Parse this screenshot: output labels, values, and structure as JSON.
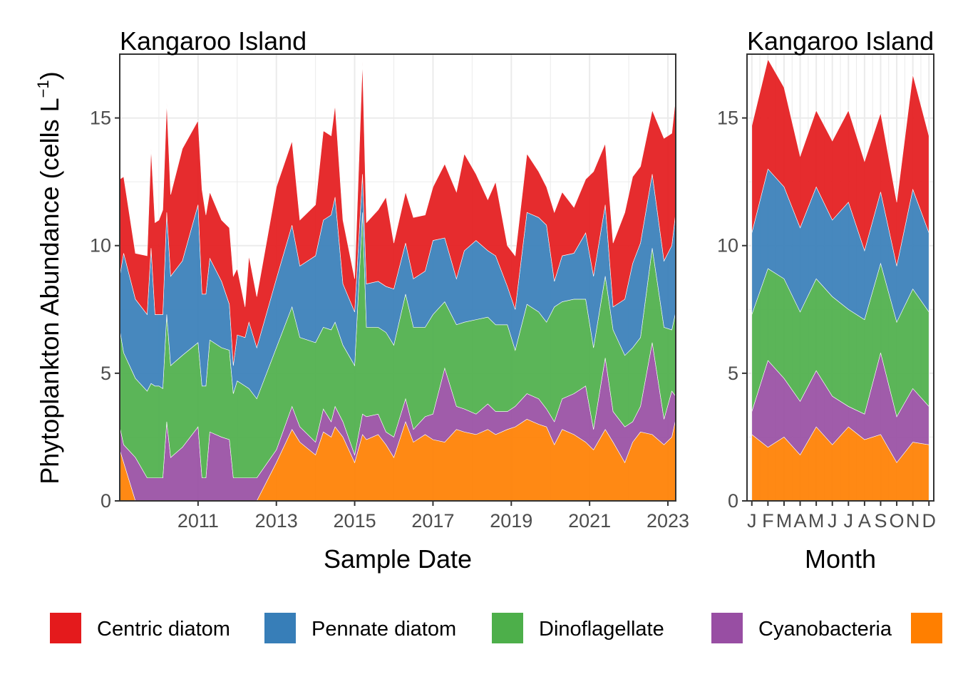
{
  "chart_data": [
    {
      "type": "area",
      "stacked": true,
      "title": "Kangaroo Island",
      "xlabel": "Sample Date",
      "ylabel": "Phytoplankton Abundance (cells L",
      "ylabel_sup": "−1",
      "ylabel_end": ")",
      "xlim": [
        2009.0,
        2023.2
      ],
      "ylim": [
        0,
        17.5
      ],
      "x_ticks": [
        2011,
        2013,
        2015,
        2017,
        2019,
        2021,
        2023
      ],
      "x_tick_labels": [
        "2011",
        "2013",
        "2015",
        "2017",
        "2019",
        "2021",
        "2023"
      ],
      "y_ticks": [
        0,
        5,
        10,
        15
      ],
      "y_tick_labels": [
        "0",
        "5",
        "10",
        "15"
      ],
      "grid": true,
      "x": [
        2009.0,
        2009.1,
        2009.4,
        2009.7,
        2009.8,
        2009.9,
        2010.0,
        2010.1,
        2010.2,
        2010.3,
        2010.6,
        2011.0,
        2011.1,
        2011.2,
        2011.3,
        2011.6,
        2011.8,
        2011.9,
        2012.0,
        2012.2,
        2012.3,
        2012.5,
        2013.0,
        2013.4,
        2013.6,
        2014.0,
        2014.2,
        2014.4,
        2014.5,
        2014.7,
        2015.0,
        2015.2,
        2015.3,
        2015.6,
        2015.8,
        2016.0,
        2016.3,
        2016.5,
        2016.8,
        2017.0,
        2017.3,
        2017.6,
        2017.8,
        2018.1,
        2018.4,
        2018.6,
        2018.9,
        2019.1,
        2019.4,
        2019.7,
        2019.9,
        2020.1,
        2020.3,
        2020.6,
        2020.9,
        2021.1,
        2021.4,
        2021.6,
        2021.9,
        2022.1,
        2022.3,
        2022.6,
        2022.9,
        2023.1,
        2023.2
      ],
      "series": [
        {
          "name": "",
          "color": "#FF7F00",
          "values": [
            2.0,
            1.5,
            0,
            0,
            0,
            0,
            0,
            0,
            0,
            0,
            0,
            0,
            0,
            0,
            0,
            0,
            0,
            0,
            0,
            0,
            0,
            0,
            1.5,
            2.8,
            2.3,
            1.8,
            2.7,
            2.5,
            2.9,
            2.5,
            1.5,
            2.6,
            2.4,
            2.6,
            2.2,
            1.7,
            3.1,
            2.3,
            2.6,
            2.4,
            2.3,
            2.8,
            2.7,
            2.6,
            2.8,
            2.6,
            2.8,
            2.9,
            3.2,
            3.0,
            2.9,
            2.2,
            2.8,
            2.6,
            2.3,
            2.0,
            2.8,
            2.3,
            1.5,
            2.3,
            2.7,
            2.6,
            2.2,
            2.5,
            3.2
          ]
        },
        {
          "name": "Cyanobacteria",
          "color": "#984EA3",
          "values": [
            0.9,
            0.7,
            1.7,
            0.9,
            0.9,
            0.9,
            0.9,
            0.9,
            3.1,
            1.7,
            2.1,
            2.9,
            0.9,
            0.9,
            2.7,
            2.5,
            2.4,
            0.9,
            0.9,
            0.9,
            0.9,
            0.9,
            0.5,
            0.9,
            0.6,
            0.5,
            0.9,
            0.6,
            0.8,
            0.6,
            0.3,
            0.8,
            0.9,
            0.8,
            0.5,
            0.8,
            0.9,
            0.5,
            0.7,
            1.0,
            2.9,
            0.9,
            0.9,
            0.8,
            1.0,
            0.9,
            0.7,
            0.8,
            1.0,
            1.0,
            0.7,
            0.9,
            1.2,
            1.6,
            2.2,
            0.8,
            2.8,
            1.2,
            1.4,
            0.8,
            1.0,
            3.6,
            1.0,
            1.8,
            0.9
          ]
        },
        {
          "name": "Dinoflagellate",
          "color": "#4DAF4A",
          "values": [
            3.8,
            3.6,
            3.1,
            3.4,
            3.7,
            3.6,
            3.6,
            3.5,
            4.2,
            3.6,
            3.6,
            3.3,
            3.6,
            3.6,
            3.6,
            3.5,
            3.5,
            3.3,
            3.8,
            3.6,
            3.5,
            3.1,
            4.0,
            3.9,
            3.5,
            3.9,
            3.2,
            3.6,
            3.3,
            3.0,
            3.5,
            7.9,
            3.5,
            3.4,
            3.9,
            3.6,
            4.1,
            4.0,
            3.5,
            3.9,
            2.6,
            3.2,
            3.4,
            3.7,
            3.4,
            3.4,
            3.4,
            2.2,
            3.5,
            3.4,
            3.4,
            4.5,
            3.8,
            3.7,
            3.4,
            3.2,
            3.2,
            3.2,
            2.8,
            2.9,
            2.7,
            3.7,
            3.6,
            2.4,
            3.3
          ]
        },
        {
          "name": "Pennate diatom",
          "color": "#377EB8",
          "values": [
            2.1,
            3.9,
            3.1,
            3.0,
            5.3,
            2.8,
            2.8,
            2.9,
            4.0,
            3.5,
            3.7,
            5.4,
            3.6,
            3.6,
            3.2,
            2.6,
            1.8,
            1.1,
            1.8,
            1.9,
            2.6,
            2.0,
            2.7,
            3.2,
            2.8,
            3.4,
            4.2,
            4.5,
            4.9,
            2.4,
            2.1,
            1.5,
            1.7,
            1.8,
            1.8,
            2.2,
            2.0,
            1.9,
            2.2,
            2.9,
            2.5,
            1.8,
            2.8,
            3.1,
            2.6,
            2.7,
            1.5,
            1.6,
            3.6,
            3.7,
            3.8,
            1.0,
            1.8,
            1.8,
            2.6,
            2.8,
            2.8,
            0.9,
            2.2,
            3.3,
            3.7,
            2.9,
            2.6,
            3.3,
            3.9
          ]
        },
        {
          "name": "Centric diatom",
          "color": "#E41A1C",
          "values": [
            3.8,
            3.0,
            1.8,
            2.3,
            3.9,
            3.6,
            3.7,
            4.1,
            4.3,
            3.2,
            4.4,
            3.3,
            4.1,
            3.1,
            2.6,
            2.4,
            3.0,
            3.5,
            2.6,
            1.2,
            2.6,
            2.0,
            3.6,
            3.3,
            1.8,
            2.0,
            3.5,
            3.1,
            3.6,
            2.5,
            1.3,
            4.4,
            2.4,
            2.8,
            3.5,
            1.8,
            2.0,
            2.4,
            2.2,
            2.1,
            2.9,
            3.4,
            3.8,
            2.6,
            2.0,
            2.9,
            1.6,
            2.1,
            2.3,
            1.8,
            1.5,
            2.7,
            2.5,
            1.8,
            2.1,
            4.1,
            2.4,
            2.5,
            3.4,
            3.4,
            3.0,
            2.5,
            4.8,
            4.4,
            4.5
          ]
        }
      ]
    },
    {
      "type": "area",
      "stacked": true,
      "title": "Kangaroo Island",
      "xlabel": "Month",
      "xlim": [
        0.7,
        12.3
      ],
      "ylim": [
        0,
        17.5
      ],
      "x_ticks": [
        1,
        2,
        3,
        4,
        5,
        6,
        7,
        8,
        9,
        10,
        11,
        12
      ],
      "x_tick_labels": [
        "J",
        "F",
        "M",
        "A",
        "M",
        "J",
        "J",
        "A",
        "S",
        "O",
        "N",
        "D"
      ],
      "y_ticks": [
        0,
        5,
        10,
        15
      ],
      "y_tick_labels": [
        "0",
        "5",
        "10",
        "15"
      ],
      "grid": true,
      "x": [
        1,
        2,
        3,
        4,
        5,
        6,
        7,
        8,
        9,
        10,
        11,
        12
      ],
      "series": [
        {
          "name": "",
          "color": "#FF7F00",
          "values": [
            2.6,
            2.1,
            2.5,
            1.8,
            2.9,
            2.2,
            2.9,
            2.4,
            2.6,
            1.5,
            2.3,
            2.2
          ]
        },
        {
          "name": "Cyanobacteria",
          "color": "#984EA3",
          "values": [
            0.9,
            3.4,
            2.3,
            2.1,
            2.2,
            1.9,
            0.8,
            1.0,
            3.2,
            1.8,
            2.1,
            1.5
          ]
        },
        {
          "name": "Dinoflagellate",
          "color": "#4DAF4A",
          "values": [
            3.8,
            3.6,
            3.9,
            3.5,
            3.6,
            3.9,
            3.8,
            3.7,
            3.5,
            3.7,
            3.9,
            3.7
          ]
        },
        {
          "name": "Pennate diatom",
          "color": "#377EB8",
          "values": [
            3.2,
            3.9,
            3.6,
            3.3,
            3.6,
            3.0,
            4.2,
            2.7,
            2.8,
            2.2,
            3.9,
            3.1
          ]
        },
        {
          "name": "Centric diatom",
          "color": "#E41A1C",
          "values": [
            4.2,
            4.3,
            3.9,
            2.8,
            3.0,
            3.1,
            3.6,
            3.5,
            3.1,
            2.5,
            4.5,
            3.8
          ]
        }
      ]
    }
  ],
  "legend": {
    "placement": "bottom",
    "items": [
      {
        "label": "Centric diatom",
        "color": "#E41A1C"
      },
      {
        "label": "Pennate diatom",
        "color": "#377EB8"
      },
      {
        "label": "Dinoflagellate",
        "color": "#4DAF4A"
      },
      {
        "label": "Cyanobacteria",
        "color": "#984EA3"
      },
      {
        "label": "",
        "color": "#FF7F00"
      }
    ]
  }
}
